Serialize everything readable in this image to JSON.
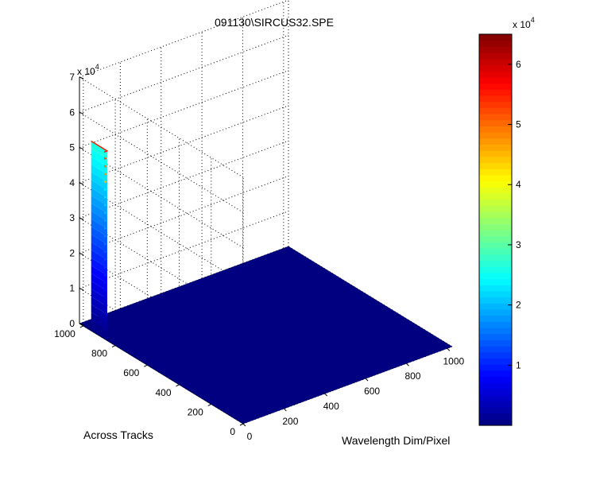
{
  "chart_data": {
    "type": "surface",
    "title": "091130\\SIRCUS32.SPE",
    "xlabel": "Wavelength Dim/Pixel",
    "ylabel": "Across Tracks",
    "zlabel": "",
    "z_multiplier_label": {
      "base": "x 10",
      "exponent": "4"
    },
    "xlim": [
      0,
      1024
    ],
    "ylim": [
      0,
      1024
    ],
    "zlim": [
      0,
      70000
    ],
    "xticks": [
      0,
      200,
      400,
      600,
      800,
      1000
    ],
    "yticks": [
      0,
      200,
      400,
      600,
      800,
      1000
    ],
    "zticks": [
      0,
      10000,
      20000,
      30000,
      40000,
      50000,
      60000,
      70000
    ],
    "xtick_labels": [
      "0",
      "200",
      "400",
      "600",
      "800",
      "1000"
    ],
    "ytick_labels": [
      "0",
      "200",
      "400",
      "600",
      "800",
      "1000"
    ],
    "ztick_labels": [
      "0",
      "1",
      "2",
      "3",
      "4",
      "5",
      "6",
      "7"
    ],
    "grid": true,
    "colormap": "jet",
    "background_level": 0,
    "peak": {
      "x_range": [
        0,
        15
      ],
      "y_range": [
        870,
        970
      ],
      "z_max": 53000,
      "z_edge": 26000
    },
    "colorbar": {
      "clim": [
        0,
        65000
      ],
      "ticks": [
        10000,
        20000,
        30000,
        40000,
        50000,
        60000
      ],
      "tick_labels": [
        "1",
        "2",
        "3",
        "4",
        "5",
        "6"
      ],
      "multiplier_label": {
        "base": "x 10",
        "exponent": "4"
      },
      "position": "right"
    }
  }
}
